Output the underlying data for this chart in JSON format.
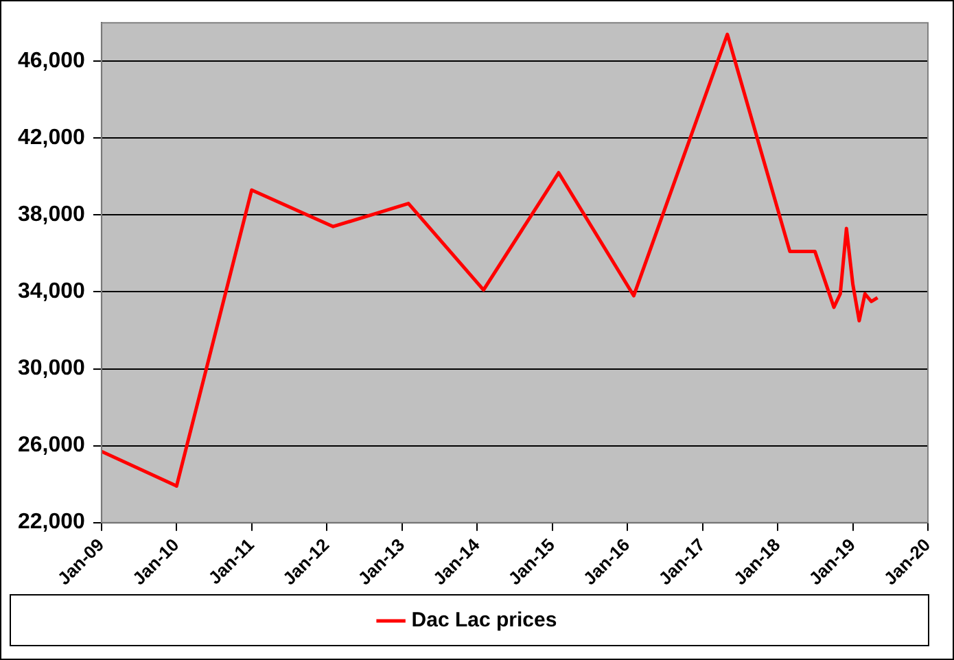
{
  "chart_data": {
    "type": "line",
    "x": [
      "2009-01",
      "2010-01",
      "2011-01",
      "2012-02",
      "2013-02",
      "2014-02",
      "2015-02",
      "2016-02",
      "2017-05",
      "2018-03",
      "2018-07",
      "2018-10",
      "2018-11",
      "2018-12",
      "2019-01",
      "2019-02",
      "2019-03",
      "2019-04",
      "2019-05"
    ],
    "series": [
      {
        "name": "Dac Lac prices",
        "color": "#ff0000",
        "values": [
          25700,
          23900,
          39300,
          37400,
          38600,
          34100,
          40200,
          33800,
          47400,
          36100,
          36100,
          33200,
          33900,
          37300,
          34400,
          32500,
          33900,
          33500,
          33700
        ]
      }
    ],
    "xlim": [
      "2009-01",
      "2020-01"
    ],
    "xticks": [
      {
        "value": "2009-01",
        "label": "Jan-09"
      },
      {
        "value": "2010-01",
        "label": "Jan-10"
      },
      {
        "value": "2011-01",
        "label": "Jan-11"
      },
      {
        "value": "2012-01",
        "label": "Jan-12"
      },
      {
        "value": "2013-01",
        "label": "Jan-13"
      },
      {
        "value": "2014-01",
        "label": "Jan-14"
      },
      {
        "value": "2015-01",
        "label": "Jan-15"
      },
      {
        "value": "2016-01",
        "label": "Jan-16"
      },
      {
        "value": "2017-01",
        "label": "Jan-17"
      },
      {
        "value": "2018-01",
        "label": "Jan-18"
      },
      {
        "value": "2019-01",
        "label": "Jan-19"
      },
      {
        "value": "2020-01",
        "label": "Jan-20"
      }
    ],
    "ylim": [
      22000,
      48000
    ],
    "yticks": [
      {
        "value": 22000,
        "label": "22,000"
      },
      {
        "value": 26000,
        "label": "26,000"
      },
      {
        "value": 30000,
        "label": "30,000"
      },
      {
        "value": 34000,
        "label": "34,000"
      },
      {
        "value": 38000,
        "label": "38,000"
      },
      {
        "value": 42000,
        "label": "42,000"
      },
      {
        "value": 46000,
        "label": "46,000"
      }
    ],
    "grid": "y",
    "legend": "bottom",
    "marker": "none",
    "line_style": "solid"
  }
}
